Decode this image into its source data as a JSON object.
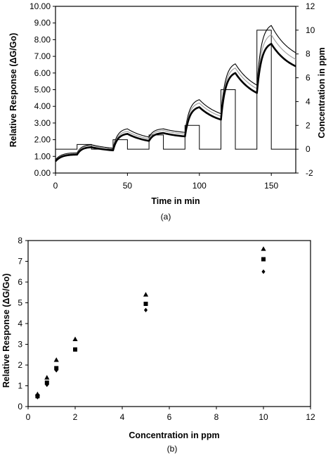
{
  "chart_data": [
    {
      "type": "line",
      "panel_label": "(a)",
      "xlabel": "Time in min",
      "ylabel": "Relative Response (ΔG/Go)",
      "y2label": "Concentration in ppm",
      "xlim": [
        0,
        167
      ],
      "ylim": [
        0,
        10
      ],
      "y2lim": [
        -2,
        12
      ],
      "xticks": [
        "0",
        "50",
        "100",
        "150"
      ],
      "yticks": [
        "0.00",
        "1.00",
        "2.00",
        "3.00",
        "4.00",
        "5.00",
        "6.00",
        "7.00",
        "8.00",
        "9.00",
        "10.00"
      ],
      "y2ticks": [
        "-2",
        "0",
        "2",
        "4",
        "6",
        "8",
        "10",
        "12"
      ],
      "pulses": [
        {
          "start": 15,
          "end": 25,
          "ppm": 0.4
        },
        {
          "start": 40,
          "end": 50,
          "ppm": 0.8
        },
        {
          "start": 65,
          "end": 75,
          "ppm": 1.2
        },
        {
          "start": 90,
          "end": 100,
          "ppm": 2.0
        },
        {
          "start": 115,
          "end": 125,
          "ppm": 5.0
        },
        {
          "start": 140,
          "end": 150,
          "ppm": 10.0
        }
      ],
      "baseline_ppm": 0,
      "series": [
        {
          "style": "thin",
          "color": "#000000",
          "peaks": [
            1.7,
            2.65,
            2.65,
            4.4,
            6.55,
            8.85
          ],
          "start": 0.8
        },
        {
          "style": "gray",
          "color": "#9a9a9a",
          "peaks": [
            1.65,
            2.5,
            2.55,
            4.2,
            6.3,
            8.3
          ],
          "start": 0.75
        },
        {
          "style": "bold",
          "color": "#000000",
          "peaks": [
            1.55,
            2.35,
            2.4,
            3.95,
            6.0,
            7.75
          ],
          "start": 0.7
        }
      ]
    },
    {
      "type": "scatter",
      "panel_label": "(b)",
      "xlabel": "Concentration in ppm",
      "ylabel": "Relative Response (ΔG/Go)",
      "xlim": [
        0,
        12
      ],
      "ylim": [
        0,
        8
      ],
      "xticks": [
        "0",
        "2",
        "4",
        "6",
        "8",
        "10",
        "12"
      ],
      "yticks": [
        "0",
        "1",
        "2",
        "3",
        "4",
        "5",
        "6",
        "7",
        "8"
      ],
      "series": [
        {
          "marker": "triangle",
          "x": [
            0.4,
            0.8,
            1.2,
            2,
            5,
            10
          ],
          "y": [
            0.6,
            1.4,
            2.25,
            3.25,
            5.4,
            7.6
          ]
        },
        {
          "marker": "square",
          "x": [
            0.4,
            0.8,
            1.2,
            2,
            5,
            10
          ],
          "y": [
            0.5,
            1.15,
            1.85,
            2.75,
            4.95,
            7.1
          ]
        },
        {
          "marker": "diamond",
          "x": [
            0.4,
            0.8,
            1.2,
            2,
            5,
            10
          ],
          "y": [
            0.45,
            1.05,
            1.75,
            2.75,
            4.65,
            6.5
          ]
        }
      ]
    }
  ]
}
